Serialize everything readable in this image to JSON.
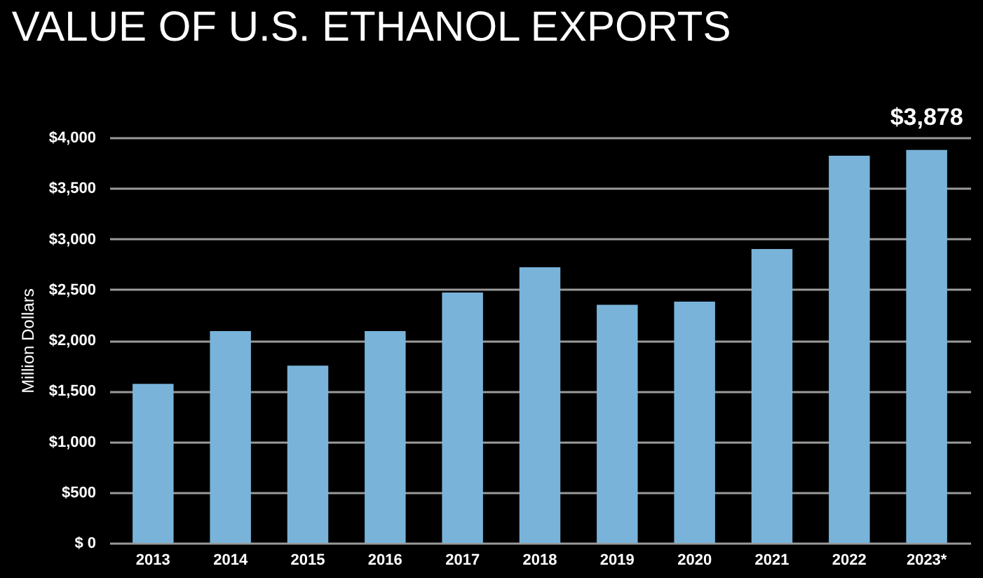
{
  "chart_data": {
    "type": "bar",
    "title": "VALUE OF U.S. ETHANOL EXPORTS",
    "ylabel": "Million Dollars",
    "categories": [
      "2013",
      "2014",
      "2015",
      "2016",
      "2017",
      "2018",
      "2019",
      "2020",
      "2021",
      "2022",
      "2023*"
    ],
    "values": [
      1570,
      2090,
      1750,
      2090,
      2470,
      2720,
      2350,
      2380,
      2900,
      3820,
      3878
    ],
    "value_labels": [
      null,
      null,
      null,
      null,
      null,
      null,
      null,
      null,
      null,
      null,
      "$3,878"
    ],
    "color": "#79b3d9",
    "ylim": [
      0,
      4000
    ],
    "yticks": [
      {
        "value": 0,
        "label": "$ 0"
      },
      {
        "value": 500,
        "label": "$500"
      },
      {
        "value": 1000,
        "label": "$1,000"
      },
      {
        "value": 1500,
        "label": "$1,500"
      },
      {
        "value": 2000,
        "label": "$2,000"
      },
      {
        "value": 2500,
        "label": "$2,500"
      },
      {
        "value": 3000,
        "label": "$3,000"
      },
      {
        "value": 3500,
        "label": "$3,500"
      },
      {
        "value": 4000,
        "label": "$4,000"
      }
    ],
    "grid": "y"
  }
}
